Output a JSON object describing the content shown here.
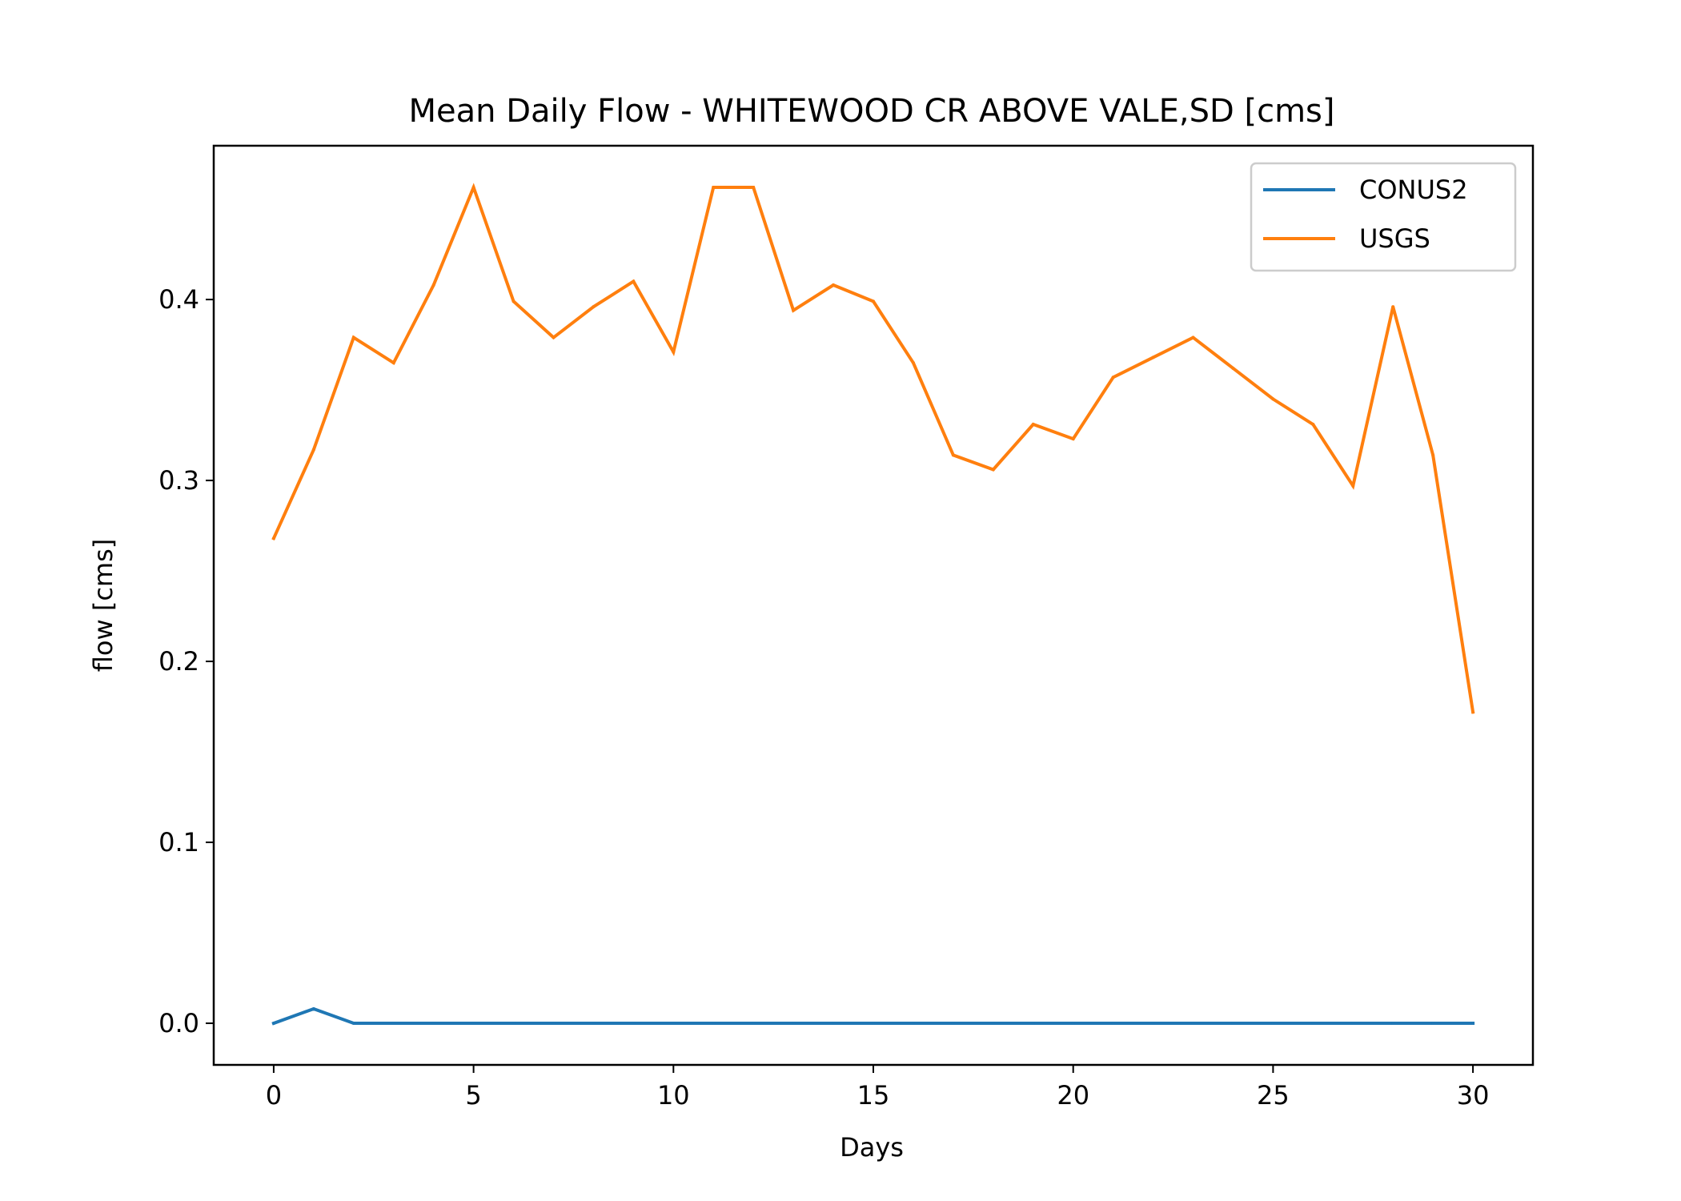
{
  "chart_data": {
    "type": "line",
    "title": "Mean Daily Flow - WHITEWOOD CR ABOVE VALE,SD [cms]",
    "xlabel": "Days",
    "ylabel": "flow [cms]",
    "xlim": [
      -1.5,
      31.5
    ],
    "ylim": [
      -0.023,
      0.485
    ],
    "xticks": [
      0,
      5,
      10,
      15,
      20,
      25,
      30
    ],
    "xtick_labels": [
      "0",
      "5",
      "10",
      "15",
      "20",
      "25",
      "30"
    ],
    "yticks": [
      0.0,
      0.1,
      0.2,
      0.3,
      0.4
    ],
    "ytick_labels": [
      "0.0",
      "0.1",
      "0.2",
      "0.3",
      "0.4"
    ],
    "grid": false,
    "legend_position": "top-right",
    "x": [
      0,
      1,
      2,
      3,
      4,
      5,
      6,
      7,
      8,
      9,
      10,
      11,
      12,
      13,
      14,
      15,
      16,
      17,
      18,
      19,
      20,
      21,
      22,
      23,
      24,
      25,
      26,
      27,
      28,
      29,
      30
    ],
    "series": [
      {
        "name": "CONUS2",
        "color": "#1f77b4",
        "values": [
          0.0,
          0.008,
          0.0,
          0.0,
          0.0,
          0.0,
          0.0,
          0.0,
          0.0,
          0.0,
          0.0,
          0.0,
          0.0,
          0.0,
          0.0,
          0.0,
          0.0,
          0.0,
          0.0,
          0.0,
          0.0,
          0.0,
          0.0,
          0.0,
          0.0,
          0.0,
          0.0,
          0.0,
          0.0,
          0.0,
          0.0
        ]
      },
      {
        "name": "USGS",
        "color": "#ff7f0e",
        "values": [
          0.268,
          0.317,
          0.379,
          0.365,
          0.408,
          0.462,
          0.399,
          0.379,
          0.396,
          0.41,
          0.371,
          0.462,
          0.462,
          0.394,
          0.408,
          0.399,
          0.365,
          0.314,
          0.306,
          0.331,
          0.323,
          0.357,
          0.368,
          0.379,
          0.362,
          0.345,
          0.331,
          0.297,
          0.396,
          0.314,
          0.172
        ]
      }
    ]
  }
}
